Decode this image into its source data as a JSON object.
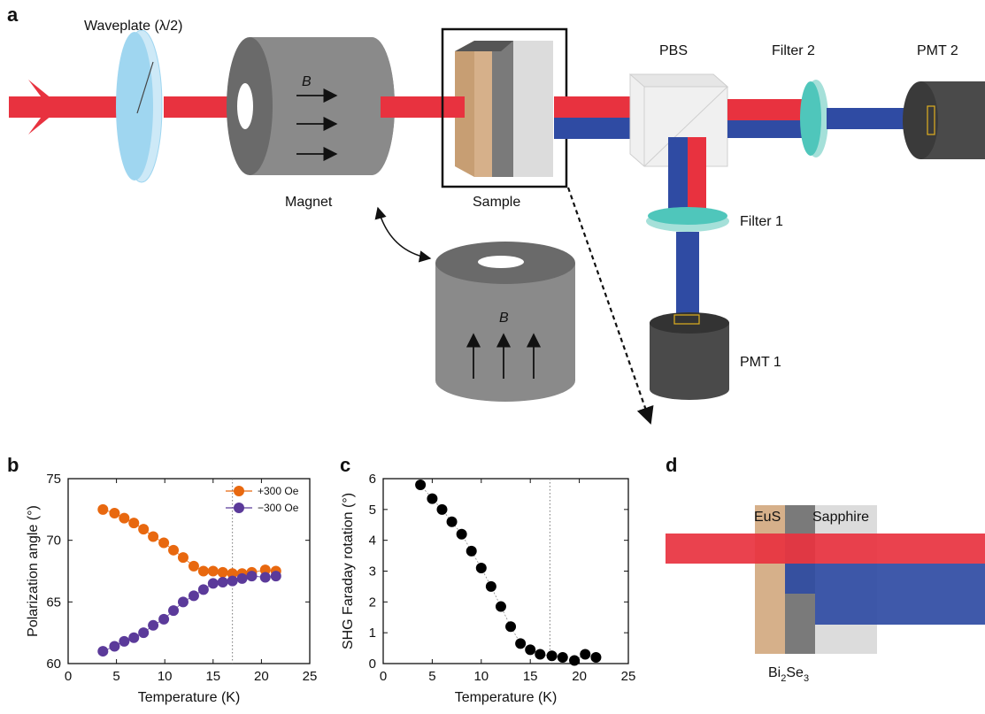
{
  "colors": {
    "red_beam": "#e8323f",
    "blue_beam": "#2f4ba3",
    "waveplate": "#9fd6f0",
    "magnet": "#8a8a8a",
    "magnet_dark": "#6a6a6a",
    "eus": "#d6b08a",
    "bi2se3": "#7a7a7a",
    "sapphire": "#dcdcdc",
    "filter": "#4fc6bb",
    "pmt": "#4a4a4a",
    "orange": "#e8680f",
    "purple": "#5b3a9a"
  },
  "panels": {
    "a": "a",
    "b": "b",
    "c": "c",
    "d": "d"
  },
  "diagram": {
    "waveplate": "Waveplate (λ/2)",
    "magnet": "Magnet",
    "field": "B",
    "sample": "Sample",
    "pbs": "PBS",
    "filter2": "Filter 2",
    "pmt2": "PMT 2",
    "filter1": "Filter 1",
    "pmt1": "PMT 1"
  },
  "layers": {
    "eus": "EuS",
    "sapphire": "Sapphire",
    "bi2se3_main": "Bi",
    "bi2se3_sub1": "2",
    "bi2se3_mid": "Se",
    "bi2se3_sub2": "3"
  },
  "chart_data": [
    {
      "type": "scatter",
      "panel": "b",
      "xlabel": "Temperature (K)",
      "ylabel": "Polarization angle (°)",
      "xlim": [
        0,
        25
      ],
      "ylim": [
        60,
        75
      ],
      "xticks": [
        0,
        5,
        10,
        15,
        20,
        25
      ],
      "yticks": [
        60,
        65,
        70,
        75
      ],
      "vline": 17,
      "legend_position": "top-right",
      "series": [
        {
          "name": "+300 Oe",
          "color": "#e8680f",
          "x": [
            3.6,
            4.8,
            5.8,
            6.8,
            7.8,
            8.8,
            9.9,
            10.9,
            11.9,
            13.0,
            14.0,
            15.0,
            16.0,
            17.0,
            18.0,
            19.0,
            20.4,
            21.5
          ],
          "y": [
            72.5,
            72.2,
            71.8,
            71.4,
            70.9,
            70.3,
            69.8,
            69.2,
            68.6,
            67.9,
            67.5,
            67.5,
            67.4,
            67.3,
            67.3,
            67.4,
            67.6,
            67.5
          ]
        },
        {
          "name": "−300 Oe",
          "color": "#5b3a9a",
          "x": [
            3.6,
            4.8,
            5.8,
            6.8,
            7.8,
            8.8,
            9.9,
            10.9,
            11.9,
            13.0,
            14.0,
            15.0,
            16.0,
            17.0,
            18.0,
            19.0,
            20.4,
            21.5
          ],
          "y": [
            61.0,
            61.4,
            61.8,
            62.1,
            62.5,
            63.1,
            63.6,
            64.3,
            65.0,
            65.5,
            66.0,
            66.5,
            66.6,
            66.7,
            66.9,
            67.1,
            67.0,
            67.1
          ]
        }
      ]
    },
    {
      "type": "scatter",
      "panel": "c",
      "xlabel": "Temperature (K)",
      "ylabel": "SHG Faraday rotation (°)",
      "xlim": [
        0,
        25
      ],
      "ylim": [
        0,
        6
      ],
      "xticks": [
        0,
        5,
        10,
        15,
        20,
        25
      ],
      "yticks": [
        0,
        1,
        2,
        3,
        4,
        5,
        6
      ],
      "vline": 17,
      "series": [
        {
          "color": "#000000",
          "x": [
            3.8,
            5.0,
            6.0,
            7.0,
            8.0,
            9.0,
            10.0,
            11.0,
            12.0,
            13.0,
            14.0,
            15.0,
            16.0,
            17.2,
            18.3,
            19.5,
            20.6,
            21.7
          ],
          "y": [
            5.8,
            5.35,
            5.0,
            4.6,
            4.2,
            3.65,
            3.1,
            2.5,
            1.85,
            1.2,
            0.65,
            0.45,
            0.3,
            0.25,
            0.2,
            0.1,
            0.3,
            0.2
          ]
        }
      ]
    }
  ]
}
